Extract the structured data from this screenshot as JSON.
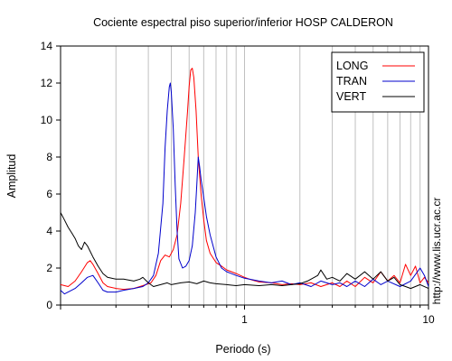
{
  "chart_data": {
    "type": "line",
    "title": "Cociente espectral piso superior/inferior  HOSP CALDERON",
    "xlabel": "Periodo (s)",
    "ylabel": "Amplitud",
    "x_scale": "log",
    "xlim": [
      0.1,
      10
    ],
    "ylim": [
      0,
      14
    ],
    "x_tick_labels": [
      {
        "value": 1,
        "label": "1"
      },
      {
        "value": 10,
        "label": "10"
      }
    ],
    "y_ticks": [
      0,
      2,
      4,
      6,
      8,
      10,
      12,
      14
    ],
    "grid": "vertical log gridlines",
    "legend_position": "top-right",
    "watermark": "http://www.lis.ucr.ac.cr",
    "series": [
      {
        "name": "LONG",
        "color": "#ff0000",
        "points": [
          [
            0.1,
            1.1
          ],
          [
            0.11,
            1.0
          ],
          [
            0.12,
            1.3
          ],
          [
            0.13,
            1.8
          ],
          [
            0.14,
            2.3
          ],
          [
            0.145,
            2.4
          ],
          [
            0.15,
            2.2
          ],
          [
            0.16,
            1.7
          ],
          [
            0.17,
            1.2
          ],
          [
            0.18,
            1.0
          ],
          [
            0.2,
            0.9
          ],
          [
            0.22,
            0.85
          ],
          [
            0.25,
            0.9
          ],
          [
            0.28,
            1.05
          ],
          [
            0.31,
            1.2
          ],
          [
            0.33,
            1.6
          ],
          [
            0.35,
            2.4
          ],
          [
            0.37,
            2.7
          ],
          [
            0.39,
            2.6
          ],
          [
            0.41,
            3.0
          ],
          [
            0.43,
            3.8
          ],
          [
            0.45,
            5.5
          ],
          [
            0.47,
            8.0
          ],
          [
            0.49,
            10.5
          ],
          [
            0.5,
            11.8
          ],
          [
            0.51,
            12.7
          ],
          [
            0.52,
            12.8
          ],
          [
            0.53,
            12.3
          ],
          [
            0.545,
            10.5
          ],
          [
            0.56,
            8.0
          ],
          [
            0.58,
            6.0
          ],
          [
            0.6,
            4.6
          ],
          [
            0.62,
            3.5
          ],
          [
            0.65,
            2.8
          ],
          [
            0.7,
            2.3
          ],
          [
            0.75,
            2.1
          ],
          [
            0.8,
            1.9
          ],
          [
            0.9,
            1.7
          ],
          [
            1.0,
            1.5
          ],
          [
            1.1,
            1.35
          ],
          [
            1.2,
            1.25
          ],
          [
            1.4,
            1.2
          ],
          [
            1.6,
            1.1
          ],
          [
            1.8,
            1.15
          ],
          [
            2.0,
            1.1
          ],
          [
            2.3,
            1.2
          ],
          [
            2.6,
            1.0
          ],
          [
            3.0,
            1.2
          ],
          [
            3.3,
            1.0
          ],
          [
            3.6,
            1.3
          ],
          [
            4.0,
            1.0
          ],
          [
            4.5,
            1.5
          ],
          [
            5.0,
            1.2
          ],
          [
            5.5,
            1.8
          ],
          [
            6.0,
            1.3
          ],
          [
            6.5,
            1.6
          ],
          [
            7.0,
            1.2
          ],
          [
            7.5,
            2.2
          ],
          [
            8.0,
            1.6
          ],
          [
            8.5,
            2.1
          ],
          [
            9.0,
            1.2
          ],
          [
            9.5,
            1.5
          ],
          [
            10.0,
            1.2
          ]
        ]
      },
      {
        "name": "TRAN",
        "color": "#0000cc",
        "points": [
          [
            0.1,
            0.8
          ],
          [
            0.105,
            0.6
          ],
          [
            0.11,
            0.7
          ],
          [
            0.12,
            0.9
          ],
          [
            0.13,
            1.2
          ],
          [
            0.14,
            1.5
          ],
          [
            0.15,
            1.6
          ],
          [
            0.16,
            1.2
          ],
          [
            0.17,
            0.8
          ],
          [
            0.18,
            0.7
          ],
          [
            0.2,
            0.7
          ],
          [
            0.22,
            0.8
          ],
          [
            0.25,
            0.9
          ],
          [
            0.28,
            1.0
          ],
          [
            0.3,
            1.2
          ],
          [
            0.32,
            1.6
          ],
          [
            0.34,
            2.8
          ],
          [
            0.36,
            5.5
          ],
          [
            0.37,
            8.5
          ],
          [
            0.38,
            10.5
          ],
          [
            0.39,
            11.8
          ],
          [
            0.395,
            12.0
          ],
          [
            0.4,
            11.5
          ],
          [
            0.41,
            9.5
          ],
          [
            0.42,
            6.5
          ],
          [
            0.43,
            4.0
          ],
          [
            0.44,
            2.5
          ],
          [
            0.46,
            2.0
          ],
          [
            0.48,
            2.1
          ],
          [
            0.5,
            2.4
          ],
          [
            0.52,
            3.2
          ],
          [
            0.54,
            5.0
          ],
          [
            0.55,
            6.5
          ],
          [
            0.56,
            8.0
          ],
          [
            0.57,
            7.5
          ],
          [
            0.58,
            6.8
          ],
          [
            0.6,
            5.8
          ],
          [
            0.62,
            4.8
          ],
          [
            0.65,
            3.8
          ],
          [
            0.7,
            2.6
          ],
          [
            0.75,
            2.0
          ],
          [
            0.8,
            1.8
          ],
          [
            0.9,
            1.6
          ],
          [
            1.0,
            1.45
          ],
          [
            1.2,
            1.3
          ],
          [
            1.4,
            1.2
          ],
          [
            1.6,
            1.3
          ],
          [
            1.8,
            1.1
          ],
          [
            2.0,
            1.2
          ],
          [
            2.3,
            1.0
          ],
          [
            2.6,
            1.3
          ],
          [
            3.0,
            1.1
          ],
          [
            3.3,
            1.2
          ],
          [
            3.6,
            1.0
          ],
          [
            4.0,
            1.3
          ],
          [
            4.5,
            1.0
          ],
          [
            5.0,
            1.4
          ],
          [
            5.5,
            1.1
          ],
          [
            6.0,
            1.3
          ],
          [
            7.0,
            1.0
          ],
          [
            8.0,
            1.3
          ],
          [
            9.0,
            2.0
          ],
          [
            9.5,
            1.6
          ],
          [
            10.0,
            1.0
          ]
        ]
      },
      {
        "name": "VERT",
        "color": "#000000",
        "points": [
          [
            0.1,
            5.0
          ],
          [
            0.105,
            4.6
          ],
          [
            0.11,
            4.2
          ],
          [
            0.115,
            3.9
          ],
          [
            0.12,
            3.6
          ],
          [
            0.125,
            3.2
          ],
          [
            0.13,
            3.0
          ],
          [
            0.135,
            3.4
          ],
          [
            0.14,
            3.2
          ],
          [
            0.15,
            2.6
          ],
          [
            0.16,
            2.1
          ],
          [
            0.17,
            1.7
          ],
          [
            0.18,
            1.5
          ],
          [
            0.2,
            1.4
          ],
          [
            0.22,
            1.4
          ],
          [
            0.25,
            1.3
          ],
          [
            0.27,
            1.4
          ],
          [
            0.28,
            1.5
          ],
          [
            0.3,
            1.2
          ],
          [
            0.32,
            1.0
          ],
          [
            0.35,
            1.1
          ],
          [
            0.38,
            1.2
          ],
          [
            0.4,
            1.1
          ],
          [
            0.45,
            1.2
          ],
          [
            0.5,
            1.25
          ],
          [
            0.55,
            1.15
          ],
          [
            0.6,
            1.3
          ],
          [
            0.65,
            1.2
          ],
          [
            0.7,
            1.15
          ],
          [
            0.8,
            1.1
          ],
          [
            0.9,
            1.05
          ],
          [
            1.0,
            1.1
          ],
          [
            1.2,
            1.05
          ],
          [
            1.4,
            1.1
          ],
          [
            1.6,
            1.05
          ],
          [
            1.8,
            1.1
          ],
          [
            2.0,
            1.15
          ],
          [
            2.2,
            1.3
          ],
          [
            2.5,
            1.6
          ],
          [
            2.6,
            1.9
          ],
          [
            2.8,
            1.4
          ],
          [
            3.0,
            1.5
          ],
          [
            3.3,
            1.3
          ],
          [
            3.6,
            1.7
          ],
          [
            4.0,
            1.4
          ],
          [
            4.5,
            1.8
          ],
          [
            5.0,
            1.4
          ],
          [
            5.5,
            1.8
          ],
          [
            6.0,
            1.3
          ],
          [
            6.5,
            1.5
          ],
          [
            7.0,
            1.1
          ],
          [
            7.5,
            1.0
          ],
          [
            8.0,
            0.9
          ],
          [
            9.0,
            1.1
          ],
          [
            10.0,
            0.9
          ]
        ]
      }
    ]
  }
}
